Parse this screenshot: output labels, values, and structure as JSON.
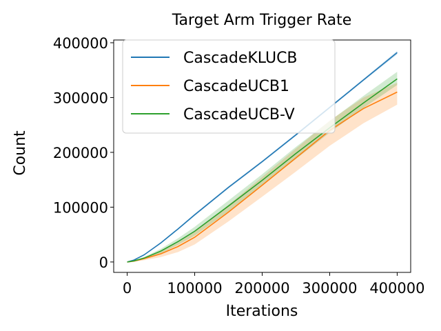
{
  "chart_data": {
    "type": "line",
    "title": "Target Arm Trigger Rate",
    "xlabel": "Iterations",
    "ylabel": "Count",
    "xlim": [
      -20000,
      420000
    ],
    "ylim": [
      -19000,
      405000
    ],
    "xticks": [
      0,
      100000,
      200000,
      300000,
      400000
    ],
    "yticks": [
      0,
      100000,
      200000,
      300000,
      400000
    ],
    "xtick_labels": [
      "0",
      "100000",
      "200000",
      "300000",
      "400000"
    ],
    "ytick_labels": [
      "0",
      "100000",
      "200000",
      "300000",
      "400000"
    ],
    "grid": false,
    "legend_position": "upper-left",
    "x": [
      0,
      10000,
      25000,
      50000,
      75000,
      100000,
      150000,
      200000,
      250000,
      300000,
      350000,
      400000
    ],
    "series": [
      {
        "name": "CascadeKLUCB",
        "color": "#1f77b4",
        "values": [
          0,
          3500,
          13000,
          35000,
          60000,
          86000,
          136000,
          183000,
          232000,
          282000,
          332000,
          382000
        ],
        "lower": [
          0,
          3000,
          12000,
          33500,
          58500,
          84000,
          134000,
          181000,
          230000,
          280000,
          330000,
          379000
        ],
        "upper": [
          0,
          4000,
          14000,
          36500,
          61500,
          88000,
          138000,
          185000,
          234000,
          284000,
          334000,
          385000
        ]
      },
      {
        "name": "CascadeUCB1",
        "color": "#ff7f0e",
        "values": [
          0,
          1500,
          6000,
          15000,
          28000,
          45000,
          91000,
          140000,
          190000,
          240000,
          280000,
          310000
        ],
        "lower": [
          0,
          800,
          3000,
          9000,
          18000,
          32000,
          74000,
          119000,
          165000,
          212000,
          253000,
          287000
        ],
        "upper": [
          0,
          2200,
          8500,
          20000,
          35000,
          55000,
          104000,
          155000,
          207000,
          258000,
          300000,
          327000
        ]
      },
      {
        "name": "CascadeUCB-V",
        "color": "#2ca02c",
        "values": [
          0,
          2000,
          7000,
          20000,
          37000,
          56000,
          102000,
          149000,
          198000,
          245000,
          290000,
          334000
        ],
        "lower": [
          0,
          1500,
          5000,
          16000,
          31000,
          48000,
          92000,
          140000,
          188000,
          236000,
          281000,
          323000
        ],
        "upper": [
          0,
          2500,
          9000,
          24000,
          43000,
          64000,
          112000,
          160000,
          210000,
          257000,
          303000,
          347000
        ]
      }
    ]
  }
}
